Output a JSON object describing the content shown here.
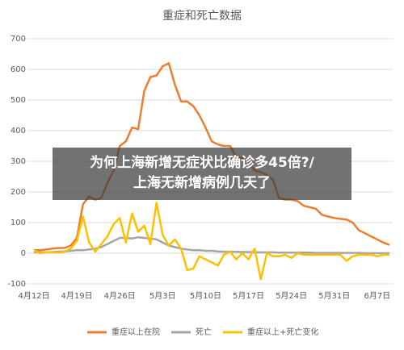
{
  "chart_data": {
    "type": "line",
    "title": "重症和死亡数据",
    "categories": [
      "4月12日",
      null,
      null,
      null,
      null,
      null,
      null,
      "4月19日",
      null,
      null,
      null,
      null,
      null,
      null,
      "4月26日",
      null,
      null,
      null,
      null,
      null,
      null,
      "5月3日",
      null,
      null,
      null,
      null,
      null,
      null,
      "5月10日",
      null,
      null,
      null,
      null,
      null,
      null,
      "5月17日",
      null,
      null,
      null,
      null,
      null,
      null,
      "5月24日",
      null,
      null,
      null,
      null,
      null,
      null,
      "5月31日",
      null,
      null,
      null,
      null,
      null,
      null,
      "6月7日",
      null,
      null
    ],
    "series": [
      {
        "name": "重症以上在院",
        "color": "#ed7d31",
        "values": [
          10,
          10,
          12,
          15,
          17,
          17,
          25,
          50,
          160,
          185,
          175,
          180,
          230,
          270,
          350,
          365,
          410,
          405,
          530,
          575,
          580,
          610,
          620,
          550,
          495,
          495,
          480,
          450,
          410,
          365,
          355,
          350,
          350,
          315,
          310,
          300,
          270,
          265,
          255,
          240,
          180,
          175,
          175,
          170,
          155,
          150,
          145,
          125,
          120,
          115,
          112,
          110,
          100,
          75,
          65,
          55,
          45,
          35,
          27
        ]
      },
      {
        "name": "死亡",
        "color": "#a5a5a5",
        "values": [
          3,
          3,
          3,
          4,
          5,
          6,
          8,
          10,
          10,
          12,
          15,
          20,
          30,
          40,
          50,
          50,
          48,
          52,
          50,
          48,
          45,
          35,
          25,
          20,
          15,
          12,
          10,
          10,
          8,
          8,
          6,
          5,
          5,
          5,
          4,
          4,
          3,
          3,
          3,
          3,
          2,
          2,
          2,
          2,
          2,
          2,
          1,
          1,
          1,
          1,
          1,
          1,
          1,
          1,
          0,
          0,
          0,
          0,
          0
        ]
      },
      {
        "name": "重症以上+死亡变化",
        "color": "#ffc000",
        "values": [
          10,
          0,
          3,
          3,
          2,
          5,
          15,
          40,
          120,
          35,
          5,
          30,
          55,
          95,
          115,
          35,
          130,
          70,
          90,
          30,
          165,
          60,
          25,
          45,
          15,
          -55,
          -50,
          -10,
          -20,
          -30,
          -40,
          -5,
          5,
          -20,
          0,
          -20,
          15,
          -85,
          0,
          -10,
          -10,
          -5,
          -15,
          0,
          -5,
          -5,
          -5,
          -5,
          -5,
          -5,
          -5,
          -25,
          -10,
          -5,
          -5,
          -5,
          -10,
          -5,
          -5
        ]
      }
    ],
    "ylim": [
      -100,
      700
    ],
    "yticks": [
      -100,
      0,
      100,
      200,
      300,
      400,
      500,
      600,
      700
    ],
    "grid": true,
    "legend": "bottom"
  },
  "overlay": {
    "lines": [
      "为何上海新增无症状比确诊多45倍?/",
      "上海无新增病例几天了"
    ]
  }
}
